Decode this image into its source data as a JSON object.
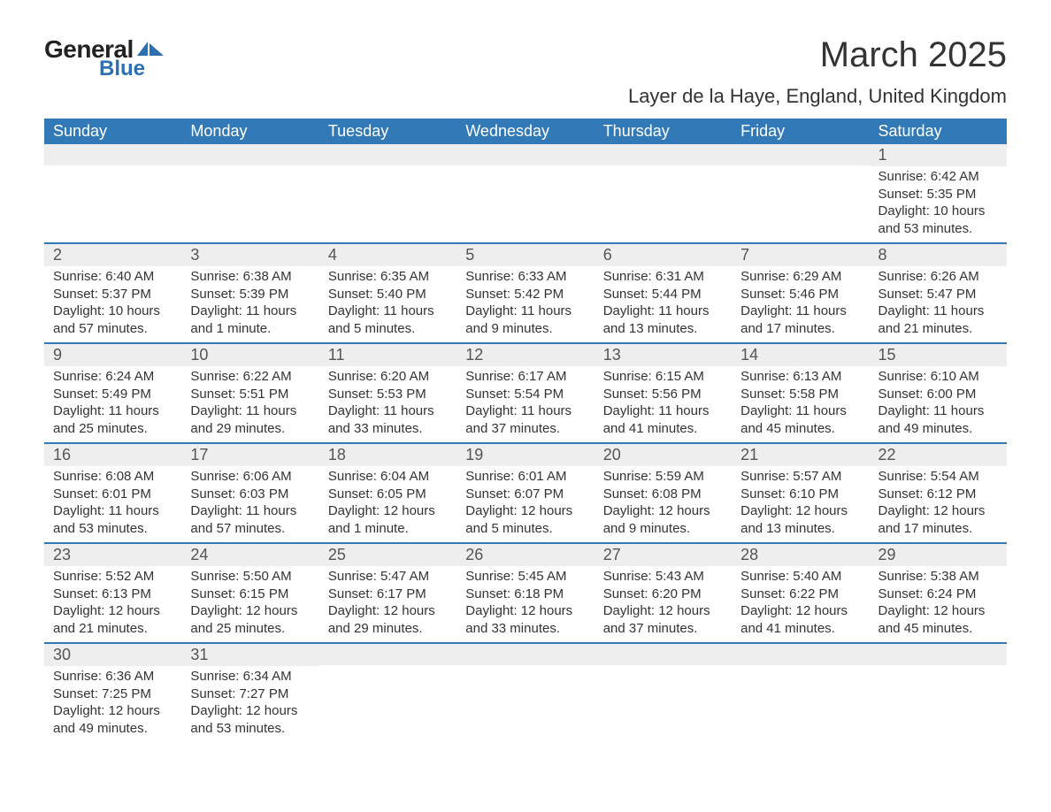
{
  "logo": {
    "text1": "General",
    "text2": "Blue",
    "shape_color": "#2d6fb0"
  },
  "title": "March 2025",
  "subtitle": "Layer de la Haye, England, United Kingdom",
  "colors": {
    "header_bg": "#327ab7",
    "header_text": "#ffffff",
    "daynum_bg": "#eeeeee",
    "border": "#327ab7",
    "body_text": "#333333"
  },
  "weekdays": [
    "Sunday",
    "Monday",
    "Tuesday",
    "Wednesday",
    "Thursday",
    "Friday",
    "Saturday"
  ],
  "weeks": [
    [
      null,
      null,
      null,
      null,
      null,
      null,
      {
        "n": "1",
        "sunrise": "Sunrise: 6:42 AM",
        "sunset": "Sunset: 5:35 PM",
        "daylight": "Daylight: 10 hours and 53 minutes."
      }
    ],
    [
      {
        "n": "2",
        "sunrise": "Sunrise: 6:40 AM",
        "sunset": "Sunset: 5:37 PM",
        "daylight": "Daylight: 10 hours and 57 minutes."
      },
      {
        "n": "3",
        "sunrise": "Sunrise: 6:38 AM",
        "sunset": "Sunset: 5:39 PM",
        "daylight": "Daylight: 11 hours and 1 minute."
      },
      {
        "n": "4",
        "sunrise": "Sunrise: 6:35 AM",
        "sunset": "Sunset: 5:40 PM",
        "daylight": "Daylight: 11 hours and 5 minutes."
      },
      {
        "n": "5",
        "sunrise": "Sunrise: 6:33 AM",
        "sunset": "Sunset: 5:42 PM",
        "daylight": "Daylight: 11 hours and 9 minutes."
      },
      {
        "n": "6",
        "sunrise": "Sunrise: 6:31 AM",
        "sunset": "Sunset: 5:44 PM",
        "daylight": "Daylight: 11 hours and 13 minutes."
      },
      {
        "n": "7",
        "sunrise": "Sunrise: 6:29 AM",
        "sunset": "Sunset: 5:46 PM",
        "daylight": "Daylight: 11 hours and 17 minutes."
      },
      {
        "n": "8",
        "sunrise": "Sunrise: 6:26 AM",
        "sunset": "Sunset: 5:47 PM",
        "daylight": "Daylight: 11 hours and 21 minutes."
      }
    ],
    [
      {
        "n": "9",
        "sunrise": "Sunrise: 6:24 AM",
        "sunset": "Sunset: 5:49 PM",
        "daylight": "Daylight: 11 hours and 25 minutes."
      },
      {
        "n": "10",
        "sunrise": "Sunrise: 6:22 AM",
        "sunset": "Sunset: 5:51 PM",
        "daylight": "Daylight: 11 hours and 29 minutes."
      },
      {
        "n": "11",
        "sunrise": "Sunrise: 6:20 AM",
        "sunset": "Sunset: 5:53 PM",
        "daylight": "Daylight: 11 hours and 33 minutes."
      },
      {
        "n": "12",
        "sunrise": "Sunrise: 6:17 AM",
        "sunset": "Sunset: 5:54 PM",
        "daylight": "Daylight: 11 hours and 37 minutes."
      },
      {
        "n": "13",
        "sunrise": "Sunrise: 6:15 AM",
        "sunset": "Sunset: 5:56 PM",
        "daylight": "Daylight: 11 hours and 41 minutes."
      },
      {
        "n": "14",
        "sunrise": "Sunrise: 6:13 AM",
        "sunset": "Sunset: 5:58 PM",
        "daylight": "Daylight: 11 hours and 45 minutes."
      },
      {
        "n": "15",
        "sunrise": "Sunrise: 6:10 AM",
        "sunset": "Sunset: 6:00 PM",
        "daylight": "Daylight: 11 hours and 49 minutes."
      }
    ],
    [
      {
        "n": "16",
        "sunrise": "Sunrise: 6:08 AM",
        "sunset": "Sunset: 6:01 PM",
        "daylight": "Daylight: 11 hours and 53 minutes."
      },
      {
        "n": "17",
        "sunrise": "Sunrise: 6:06 AM",
        "sunset": "Sunset: 6:03 PM",
        "daylight": "Daylight: 11 hours and 57 minutes."
      },
      {
        "n": "18",
        "sunrise": "Sunrise: 6:04 AM",
        "sunset": "Sunset: 6:05 PM",
        "daylight": "Daylight: 12 hours and 1 minute."
      },
      {
        "n": "19",
        "sunrise": "Sunrise: 6:01 AM",
        "sunset": "Sunset: 6:07 PM",
        "daylight": "Daylight: 12 hours and 5 minutes."
      },
      {
        "n": "20",
        "sunrise": "Sunrise: 5:59 AM",
        "sunset": "Sunset: 6:08 PM",
        "daylight": "Daylight: 12 hours and 9 minutes."
      },
      {
        "n": "21",
        "sunrise": "Sunrise: 5:57 AM",
        "sunset": "Sunset: 6:10 PM",
        "daylight": "Daylight: 12 hours and 13 minutes."
      },
      {
        "n": "22",
        "sunrise": "Sunrise: 5:54 AM",
        "sunset": "Sunset: 6:12 PM",
        "daylight": "Daylight: 12 hours and 17 minutes."
      }
    ],
    [
      {
        "n": "23",
        "sunrise": "Sunrise: 5:52 AM",
        "sunset": "Sunset: 6:13 PM",
        "daylight": "Daylight: 12 hours and 21 minutes."
      },
      {
        "n": "24",
        "sunrise": "Sunrise: 5:50 AM",
        "sunset": "Sunset: 6:15 PM",
        "daylight": "Daylight: 12 hours and 25 minutes."
      },
      {
        "n": "25",
        "sunrise": "Sunrise: 5:47 AM",
        "sunset": "Sunset: 6:17 PM",
        "daylight": "Daylight: 12 hours and 29 minutes."
      },
      {
        "n": "26",
        "sunrise": "Sunrise: 5:45 AM",
        "sunset": "Sunset: 6:18 PM",
        "daylight": "Daylight: 12 hours and 33 minutes."
      },
      {
        "n": "27",
        "sunrise": "Sunrise: 5:43 AM",
        "sunset": "Sunset: 6:20 PM",
        "daylight": "Daylight: 12 hours and 37 minutes."
      },
      {
        "n": "28",
        "sunrise": "Sunrise: 5:40 AM",
        "sunset": "Sunset: 6:22 PM",
        "daylight": "Daylight: 12 hours and 41 minutes."
      },
      {
        "n": "29",
        "sunrise": "Sunrise: 5:38 AM",
        "sunset": "Sunset: 6:24 PM",
        "daylight": "Daylight: 12 hours and 45 minutes."
      }
    ],
    [
      {
        "n": "30",
        "sunrise": "Sunrise: 6:36 AM",
        "sunset": "Sunset: 7:25 PM",
        "daylight": "Daylight: 12 hours and 49 minutes."
      },
      {
        "n": "31",
        "sunrise": "Sunrise: 6:34 AM",
        "sunset": "Sunset: 7:27 PM",
        "daylight": "Daylight: 12 hours and 53 minutes."
      },
      null,
      null,
      null,
      null,
      null
    ]
  ]
}
